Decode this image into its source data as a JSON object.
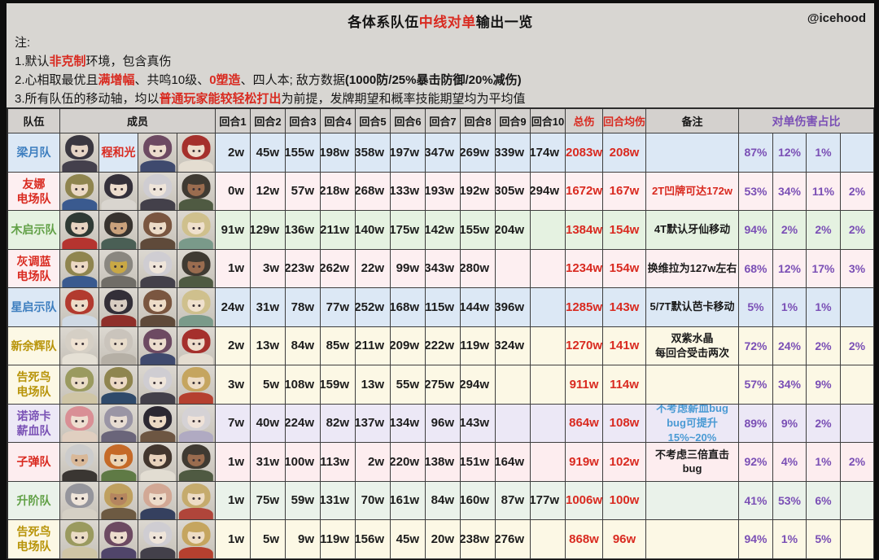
{
  "page": {
    "title_prefix": "各体系队伍",
    "title_highlight": "中线对单",
    "title_suffix": "输出一览",
    "watermark": "@icehood",
    "notes_label": "注:",
    "notes": [
      {
        "segments": [
          {
            "t": "1.默认"
          },
          {
            "t": "非克制",
            "style": "red"
          },
          {
            "t": "环境，包含真伤"
          }
        ]
      },
      {
        "segments": [
          {
            "t": "2.心相取最优且"
          },
          {
            "t": "满增幅",
            "style": "red"
          },
          {
            "t": "、共鸣10级、"
          },
          {
            "t": "0塑造",
            "style": "red"
          },
          {
            "t": "、四人本; 敌方数据"
          },
          {
            "t": "(1000防/25%暴击防御/20%减伤)",
            "style": "bold"
          }
        ]
      },
      {
        "segments": [
          {
            "t": "3.所有队伍的移动轴，均以"
          },
          {
            "t": "普通玩家能较轻松打出",
            "style": "red"
          },
          {
            "t": "为前提，发牌期望和概率技能期望均为平均值"
          }
        ]
      }
    ]
  },
  "colors": {
    "red": "#d92a20",
    "purple": "#7a4fb5",
    "blue_note": "#4a9ad4",
    "header_bg": "#d4d1ce"
  },
  "table": {
    "headers": {
      "team": "队伍",
      "members": "成员",
      "total": "总伤",
      "avg": "回合均伤",
      "note": "备注",
      "pct_group": "对单伤害占比"
    },
    "round_headers": [
      "回合1",
      "回合2",
      "回合3",
      "回合4",
      "回合5",
      "回合6",
      "回合7",
      "回合8",
      "回合9",
      "回合10"
    ],
    "rows": [
      {
        "team": "梁月队",
        "team_color": "#3d7ebf",
        "bg": "#dce8f5",
        "members": [
          {
            "h": "#3a3740",
            "s": "#e5d4c4",
            "c": "#44404c"
          },
          {
            "text": "程和光"
          },
          {
            "h": "#6d4a62",
            "s": "#ecdccd",
            "c": "#3f4a6e"
          },
          {
            "h": "#a5302c",
            "s": "#eddccb",
            "c": "#e4ddd1"
          }
        ],
        "rounds": [
          "2w",
          "45w",
          "155w",
          "198w",
          "358w",
          "197w",
          "347w",
          "269w",
          "339w",
          "174w"
        ],
        "total": "2083w",
        "avg": "208w",
        "note": "",
        "note_color": "",
        "pcts": [
          "87%",
          "12%",
          "1%",
          ""
        ]
      },
      {
        "team": "友娜\n电场队",
        "team_color": "#d92a20",
        "bg": "#fdeff1",
        "members": [
          {
            "h": "#8f854f",
            "s": "#ecd9c4",
            "c": "#3a5a8f"
          },
          {
            "h": "#34303a",
            "s": "#ecdccd",
            "c": "#d9d5cf"
          },
          {
            "h": "#cfcdd2",
            "s": "#efe5da",
            "c": "#43404a"
          },
          {
            "h": "#3f3a32",
            "s": "#9a6c4f",
            "c": "#4f5a42"
          }
        ],
        "rounds": [
          "0w",
          "12w",
          "57w",
          "218w",
          "268w",
          "133w",
          "193w",
          "192w",
          "305w",
          "294w"
        ],
        "total": "1672w",
        "avg": "167w",
        "note": "2T凹牌可达172w",
        "note_color": "#d92a20",
        "pcts": [
          "53%",
          "34%",
          "11%",
          "2%"
        ]
      },
      {
        "team": "木启示队",
        "team_color": "#61a046",
        "bg": "#e5f2e1",
        "members": [
          {
            "h": "#2f3a34",
            "s": "#e8d5c2",
            "c": "#b5342f"
          },
          {
            "h": "#38332f",
            "s": "#caa27c",
            "c": "#4a5f55"
          },
          {
            "h": "#7a5640",
            "s": "#eddcc8",
            "c": "#5f4a3a"
          },
          {
            "h": "#cfc08d",
            "s": "#efe0cd",
            "c": "#7a9a8a"
          }
        ],
        "rounds": [
          "91w",
          "129w",
          "136w",
          "211w",
          "140w",
          "175w",
          "142w",
          "155w",
          "204w",
          ""
        ],
        "total": "1384w",
        "avg": "154w",
        "note": "4T默认牙仙移动",
        "note_color": "",
        "pcts": [
          "94%",
          "2%",
          "2%",
          "2%"
        ]
      },
      {
        "team": "灰调蓝\n电场队",
        "team_color": "#d92a20",
        "bg": "#fdeff1",
        "members": [
          {
            "h": "#8f854f",
            "s": "#ecd9c4",
            "c": "#3a5a8f"
          },
          {
            "h": "#8a8780",
            "s": "#c9a845",
            "c": "#706d67"
          },
          {
            "h": "#cfcdd2",
            "s": "#efe5da",
            "c": "#43404a"
          },
          {
            "h": "#3f3a32",
            "s": "#9a6c4f",
            "c": "#4f5a42"
          }
        ],
        "rounds": [
          "1w",
          "3w",
          "223w",
          "262w",
          "22w",
          "99w",
          "343w",
          "280w",
          "",
          ""
        ],
        "total": "1234w",
        "avg": "154w",
        "note": "换维拉为127w左右",
        "note_color": "",
        "pcts": [
          "68%",
          "12%",
          "17%",
          "3%"
        ]
      },
      {
        "team": "星启示队",
        "team_color": "#3d7ebf",
        "bg": "#dce8f5",
        "members": [
          {
            "h": "#b23a2f",
            "s": "#eddcc8",
            "c": "#cfd9e4"
          },
          {
            "h": "#332f38",
            "s": "#d9cdc2",
            "c": "#8f2f2a"
          },
          {
            "h": "#7a5640",
            "s": "#eddcc8",
            "c": "#5f4a3a"
          },
          {
            "h": "#cfc08d",
            "s": "#efe0cd",
            "c": "#7a9a8a"
          }
        ],
        "rounds": [
          "24w",
          "31w",
          "78w",
          "77w",
          "252w",
          "168w",
          "115w",
          "144w",
          "396w",
          ""
        ],
        "total": "1285w",
        "avg": "143w",
        "note": "5/7T默认芭卡移动",
        "note_color": "",
        "pcts": [
          "5%",
          "1%",
          "1%",
          ""
        ]
      },
      {
        "team": "新余辉队",
        "team_color": "#b8940a",
        "bg": "#fcf8e5",
        "members": [
          {
            "h": "#d5cfc5",
            "s": "#efe2d2",
            "c": "#e5e0d5"
          },
          {
            "h": "#cac4bc",
            "s": "#e8dccb",
            "c": "#b5afa5"
          },
          {
            "h": "#6d4a62",
            "s": "#ecdccd",
            "c": "#3f4a6e"
          },
          {
            "h": "#a5302c",
            "s": "#eddccb",
            "c": "#e4ddd1"
          }
        ],
        "rounds": [
          "2w",
          "13w",
          "84w",
          "85w",
          "211w",
          "209w",
          "222w",
          "119w",
          "324w",
          ""
        ],
        "total": "1270w",
        "avg": "141w",
        "note": "双紫水晶\n每回合受击两次",
        "note_color": "",
        "pcts": [
          "72%",
          "24%",
          "2%",
          "2%"
        ]
      },
      {
        "team": "告死鸟\n电场队",
        "team_color": "#b8940a",
        "bg": "#fcf8e5",
        "members": [
          {
            "h": "#9a9a5f",
            "s": "#eadcc5",
            "c": "#cfc5a5"
          },
          {
            "h": "#8f854f",
            "s": "#ecd9c4",
            "c": "#2f4a6a"
          },
          {
            "h": "#cfcdd2",
            "s": "#efe5da",
            "c": "#43404a"
          },
          {
            "h": "#c5a55f",
            "s": "#eddcc5",
            "c": "#b5402f"
          }
        ],
        "rounds": [
          "3w",
          "5w",
          "108w",
          "159w",
          "13w",
          "55w",
          "275w",
          "294w",
          "",
          ""
        ],
        "total": "911w",
        "avg": "114w",
        "note": "",
        "note_color": "",
        "pcts": [
          "57%",
          "34%",
          "9%",
          ""
        ]
      },
      {
        "team": "诺谛卡\n薪血队",
        "team_color": "#7a52b5",
        "bg": "#ece8f6",
        "members": [
          {
            "h": "#d98f95",
            "s": "#eeded0",
            "c": "#e0cfc0"
          },
          {
            "h": "#9a95a5",
            "s": "#e8dcd2",
            "c": "#6a657a"
          },
          {
            "h": "#2c2832",
            "s": "#ecd9c4",
            "c": "#6d5642"
          },
          {
            "h": "#d5d2d5",
            "s": "#efe2d8",
            "c": "#b0aac2"
          }
        ],
        "rounds": [
          "7w",
          "40w",
          "224w",
          "82w",
          "137w",
          "134w",
          "96w",
          "143w",
          "",
          ""
        ],
        "total": "864w",
        "avg": "108w",
        "note": "不考虑薪血bug\nbug可提升\n15%~20%",
        "note_color": "#4a9ad4",
        "pcts": [
          "89%",
          "9%",
          "2%",
          ""
        ]
      },
      {
        "team": "子弹队",
        "team_color": "#d92a20",
        "bg": "#fdedef",
        "members": [
          {
            "h": "#cccccc",
            "s": "#d9b898",
            "c": "#3a3632"
          },
          {
            "h": "#c56a28",
            "s": "#ecd5b5",
            "c": "#5f7a45"
          },
          {
            "h": "#42362e",
            "s": "#e8d2bc",
            "c": "#e2ddd2"
          },
          {
            "h": "#3f3a32",
            "s": "#9a6c4f",
            "c": "#4f5a42"
          }
        ],
        "rounds": [
          "1w",
          "31w",
          "100w",
          "113w",
          "2w",
          "220w",
          "138w",
          "151w",
          "164w",
          ""
        ],
        "total": "919w",
        "avg": "102w",
        "note": "不考虑三倍直击\nbug",
        "note_color": "",
        "pcts": [
          "92%",
          "4%",
          "1%",
          "2%"
        ]
      },
      {
        "team": "升阶队",
        "team_color": "#61a046",
        "bg": "#eaf2ea",
        "members": [
          {
            "h": "#95959c",
            "s": "#efe5da",
            "c": "#d5d0c5"
          },
          {
            "h": "#bfa05f",
            "s": "#b5855f",
            "c": "#6d5a42"
          },
          {
            "h": "#d2a895",
            "s": "#eddccb",
            "c": "#35405f"
          },
          {
            "h": "#c5ab6d",
            "s": "#eddcc5",
            "c": "#b0453a"
          }
        ],
        "rounds": [
          "1w",
          "75w",
          "59w",
          "131w",
          "70w",
          "161w",
          "84w",
          "160w",
          "87w",
          "177w"
        ],
        "total": "1006w",
        "avg": "100w",
        "note": "",
        "note_color": "",
        "pcts": [
          "41%",
          "53%",
          "6%",
          ""
        ]
      },
      {
        "team": "告死鸟\n电场队",
        "team_color": "#b8940a",
        "bg": "#fcf8e5",
        "members": [
          {
            "h": "#9a9a5f",
            "s": "#eadcc5",
            "c": "#cfc5a5"
          },
          {
            "h": "#6d4a62",
            "s": "#ecdccd",
            "c": "#50456a"
          },
          {
            "h": "#cfcdd2",
            "s": "#efe5da",
            "c": "#43404a"
          },
          {
            "h": "#c5a55f",
            "s": "#eddcc5",
            "c": "#b5402f"
          }
        ],
        "rounds": [
          "1w",
          "5w",
          "9w",
          "119w",
          "156w",
          "45w",
          "20w",
          "238w",
          "276w",
          ""
        ],
        "total": "868w",
        "avg": "96w",
        "note": "",
        "note_color": "",
        "pcts": [
          "94%",
          "1%",
          "5%",
          ""
        ]
      }
    ]
  },
  "chart_data": {
    "type": "table",
    "title": "各体系队伍中线对单输出一览",
    "columns": [
      "队伍",
      "回合1",
      "回合2",
      "回合3",
      "回合4",
      "回合5",
      "回合6",
      "回合7",
      "回合8",
      "回合9",
      "回合10",
      "总伤",
      "回合均伤",
      "备注",
      "对单伤害占比1",
      "对单伤害占比2",
      "对单伤害占比3",
      "对单伤害占比4"
    ],
    "rows": [
      [
        "梁月队",
        "2w",
        "45w",
        "155w",
        "198w",
        "358w",
        "197w",
        "347w",
        "269w",
        "339w",
        "174w",
        "2083w",
        "208w",
        "",
        "87%",
        "12%",
        "1%",
        ""
      ],
      [
        "友娜电场队",
        "0w",
        "12w",
        "57w",
        "218w",
        "268w",
        "133w",
        "193w",
        "192w",
        "305w",
        "294w",
        "1672w",
        "167w",
        "2T凹牌可达172w",
        "53%",
        "34%",
        "11%",
        "2%"
      ],
      [
        "木启示队",
        "91w",
        "129w",
        "136w",
        "211w",
        "140w",
        "175w",
        "142w",
        "155w",
        "204w",
        "",
        "1384w",
        "154w",
        "4T默认牙仙移动",
        "94%",
        "2%",
        "2%",
        "2%"
      ],
      [
        "灰调蓝电场队",
        "1w",
        "3w",
        "223w",
        "262w",
        "22w",
        "99w",
        "343w",
        "280w",
        "",
        "",
        "1234w",
        "154w",
        "换维拉为127w左右",
        "68%",
        "12%",
        "17%",
        "3%"
      ],
      [
        "星启示队",
        "24w",
        "31w",
        "78w",
        "77w",
        "252w",
        "168w",
        "115w",
        "144w",
        "396w",
        "",
        "1285w",
        "143w",
        "5/7T默认芭卡移动",
        "5%",
        "1%",
        "1%",
        ""
      ],
      [
        "新余辉队",
        "2w",
        "13w",
        "84w",
        "85w",
        "211w",
        "209w",
        "222w",
        "119w",
        "324w",
        "",
        "1270w",
        "141w",
        "双紫水晶 每回合受击两次",
        "72%",
        "24%",
        "2%",
        "2%"
      ],
      [
        "告死鸟电场队",
        "3w",
        "5w",
        "108w",
        "159w",
        "13w",
        "55w",
        "275w",
        "294w",
        "",
        "",
        "911w",
        "114w",
        "",
        "57%",
        "34%",
        "9%",
        ""
      ],
      [
        "诺谛卡薪血队",
        "7w",
        "40w",
        "224w",
        "82w",
        "137w",
        "134w",
        "96w",
        "143w",
        "",
        "",
        "864w",
        "108w",
        "不考虑薪血bug bug可提升 15%~20%",
        "89%",
        "9%",
        "2%",
        ""
      ],
      [
        "子弹队",
        "1w",
        "31w",
        "100w",
        "113w",
        "2w",
        "220w",
        "138w",
        "151w",
        "164w",
        "",
        "919w",
        "102w",
        "不考虑三倍直击 bug",
        "92%",
        "4%",
        "1%",
        "2%"
      ],
      [
        "升阶队",
        "1w",
        "75w",
        "59w",
        "131w",
        "70w",
        "161w",
        "84w",
        "160w",
        "87w",
        "177w",
        "1006w",
        "100w",
        "",
        "41%",
        "53%",
        "6%",
        ""
      ],
      [
        "告死鸟电场队",
        "1w",
        "5w",
        "9w",
        "119w",
        "156w",
        "45w",
        "20w",
        "238w",
        "276w",
        "",
        "868w",
        "96w",
        "",
        "94%",
        "1%",
        "5%",
        ""
      ]
    ]
  }
}
